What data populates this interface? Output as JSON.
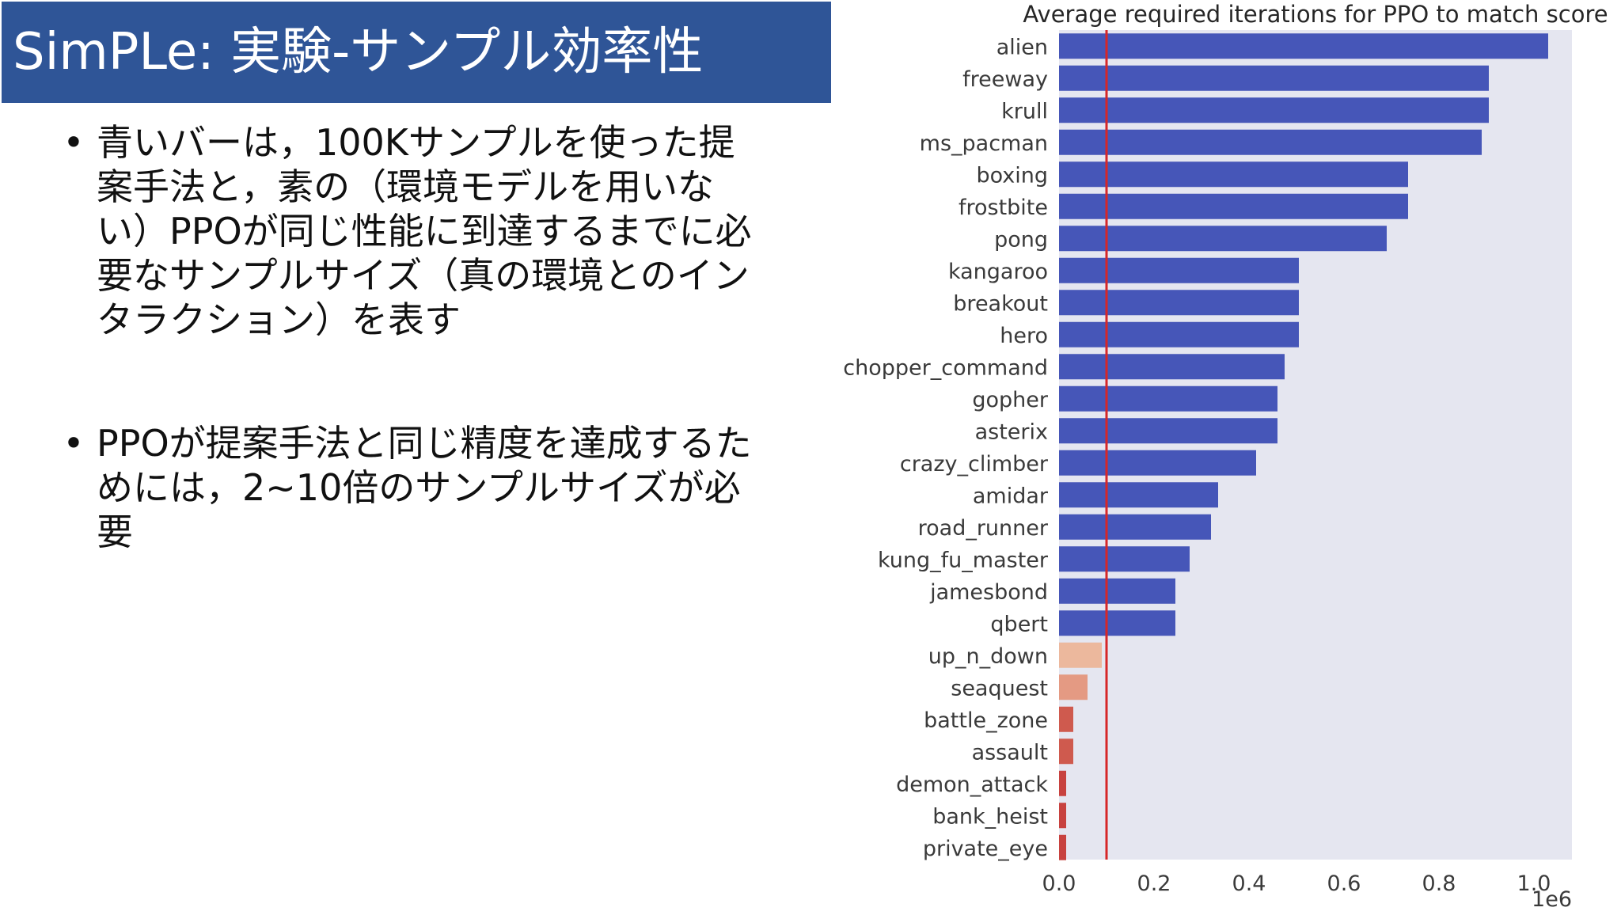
{
  "slide": {
    "title": "SimPLe: 実験-サンプル効率性",
    "bullet_symbol": "•",
    "bullets": [
      "青いバーは，100Kサンプルを使った提案手法と，素の（環境モデルを用いない）PPOが同じ性能に到達するまでに必要なサンプルサイズ（真の環境とのインタラクション）を表す",
      "PPOが提案手法と同じ精度を達成するためには，2~10倍のサンプルサイズが必要"
    ]
  },
  "chart_data": {
    "type": "bar",
    "orientation": "horizontal",
    "title": "Average required iterations for PPO to match score",
    "xlabel": "",
    "ylabel": "",
    "x_tick_labels": [
      "0.0",
      "0.2",
      "0.4",
      "0.6",
      "0.8",
      "1.0"
    ],
    "x_ticks": [
      0,
      200000,
      400000,
      600000,
      800000,
      1000000
    ],
    "axis_offset_label": "1e6",
    "xlim": [
      0,
      1080000
    ],
    "reference_line": {
      "value": 100000,
      "color": "#d62728"
    },
    "colors": {
      "background": "#e5e6f0",
      "primary_bar": "#4656b8"
    },
    "categories": [
      "alien",
      "freeway",
      "krull",
      "ms_pacman",
      "boxing",
      "frostbite",
      "pong",
      "kangaroo",
      "breakout",
      "hero",
      "chopper_command",
      "gopher",
      "asterix",
      "crazy_climber",
      "amidar",
      "road_runner",
      "kung_fu_master",
      "jamesbond",
      "qbert",
      "up_n_down",
      "seaquest",
      "battle_zone",
      "assault",
      "demon_attack",
      "bank_heist",
      "private_eye"
    ],
    "values": [
      1030000,
      905000,
      905000,
      890000,
      735000,
      735000,
      690000,
      505000,
      505000,
      505000,
      475000,
      460000,
      460000,
      415000,
      335000,
      320000,
      275000,
      245000,
      245000,
      90000,
      60000,
      30000,
      30000,
      15000,
      15000,
      15000
    ],
    "bar_colors": [
      "#4656b8",
      "#4656b8",
      "#4656b8",
      "#4656b8",
      "#4656b8",
      "#4656b8",
      "#4656b8",
      "#4656b8",
      "#4656b8",
      "#4656b8",
      "#4656b8",
      "#4656b8",
      "#4656b8",
      "#4656b8",
      "#4656b8",
      "#4656b8",
      "#4656b8",
      "#4656b8",
      "#4656b8",
      "#ecb89d",
      "#e49a83",
      "#cf5a4e",
      "#cf5a4e",
      "#c8423f",
      "#c8423f",
      "#c8423f"
    ]
  }
}
